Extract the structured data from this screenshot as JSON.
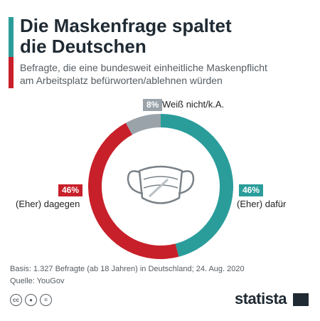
{
  "header": {
    "title_line1": "Die Maskenfrage spaltet",
    "title_line2": "die Deutschen",
    "subtitle_line1": "Befragte, die eine bundesweit einheitliche Maskenpflicht",
    "subtitle_line2": "am Arbeitsplatz befürworten/ablehnen würden"
  },
  "chart_data": {
    "type": "pie",
    "donut": true,
    "slices": [
      {
        "label": "(Eher) dafür",
        "value": 46,
        "value_label": "46%",
        "color": "#2a9d9b"
      },
      {
        "label": "(Eher) dagegen",
        "value": 46,
        "value_label": "46%",
        "color": "#c8202a"
      },
      {
        "label": "Weiß nicht/k.A.",
        "value": 8,
        "value_label": "8%",
        "color": "#9aa3aa"
      }
    ],
    "center_icon": "face-mask-icon"
  },
  "footer": {
    "basis": "Basis: 1.327 Befragte (ab 18 Jahren) in Deutschland; 24. Aug. 2020",
    "source": "Quelle: YouGov",
    "license_icons": [
      "cc-icon",
      "person-icon",
      "equals-icon"
    ],
    "brand": "statista"
  }
}
